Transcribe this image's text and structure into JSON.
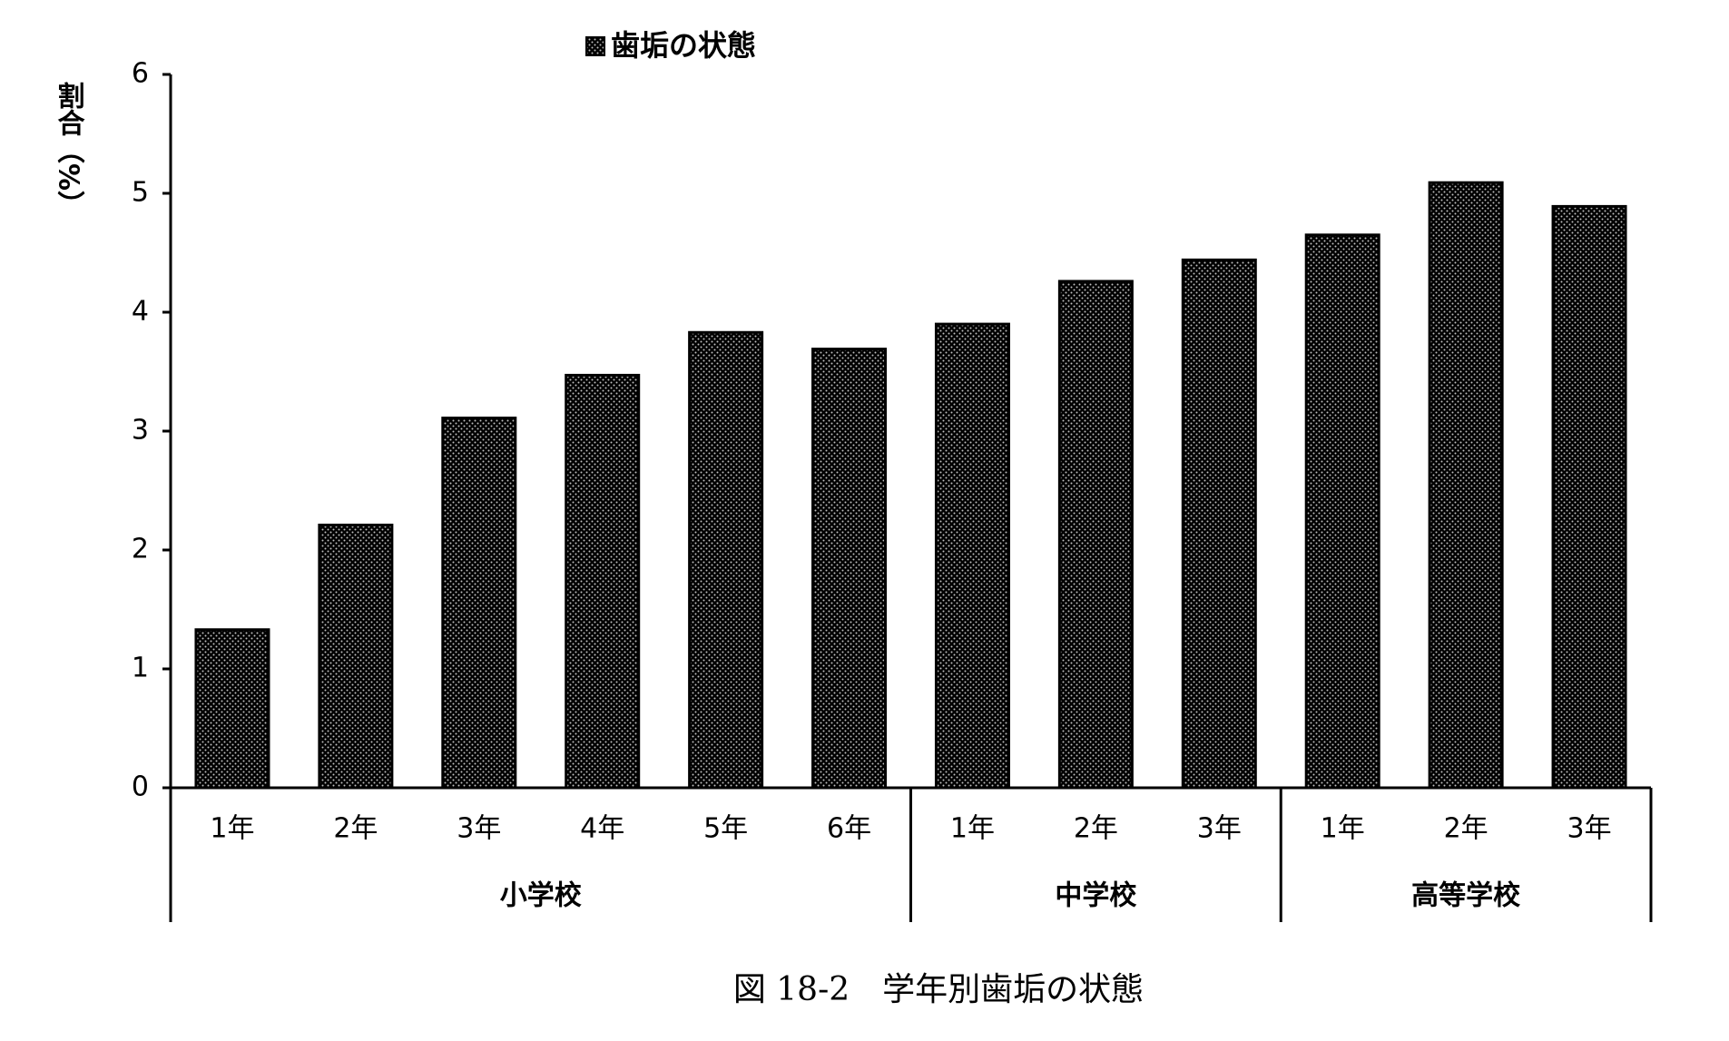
{
  "chart_data": {
    "type": "bar",
    "ylabel": "割合（%）",
    "legend": "歯垢の状態",
    "caption": "図 18-2　学年別歯垢の状態",
    "groups": [
      {
        "label": "小学校",
        "categories": [
          "1年",
          "2年",
          "3年",
          "4年",
          "5年",
          "6年"
        ]
      },
      {
        "label": "中学校",
        "categories": [
          "1年",
          "2年",
          "3年"
        ]
      },
      {
        "label": "高等学校",
        "categories": [
          "1年",
          "2年",
          "3年"
        ]
      }
    ],
    "values": [
      1.33,
      2.21,
      3.11,
      3.47,
      3.83,
      3.69,
      3.9,
      4.26,
      4.44,
      4.65,
      5.09,
      4.89
    ],
    "color": "#000000",
    "ylim": [
      0,
      6
    ],
    "yticks": [
      0,
      1,
      2,
      3,
      4,
      5,
      6
    ],
    "grid": false
  }
}
